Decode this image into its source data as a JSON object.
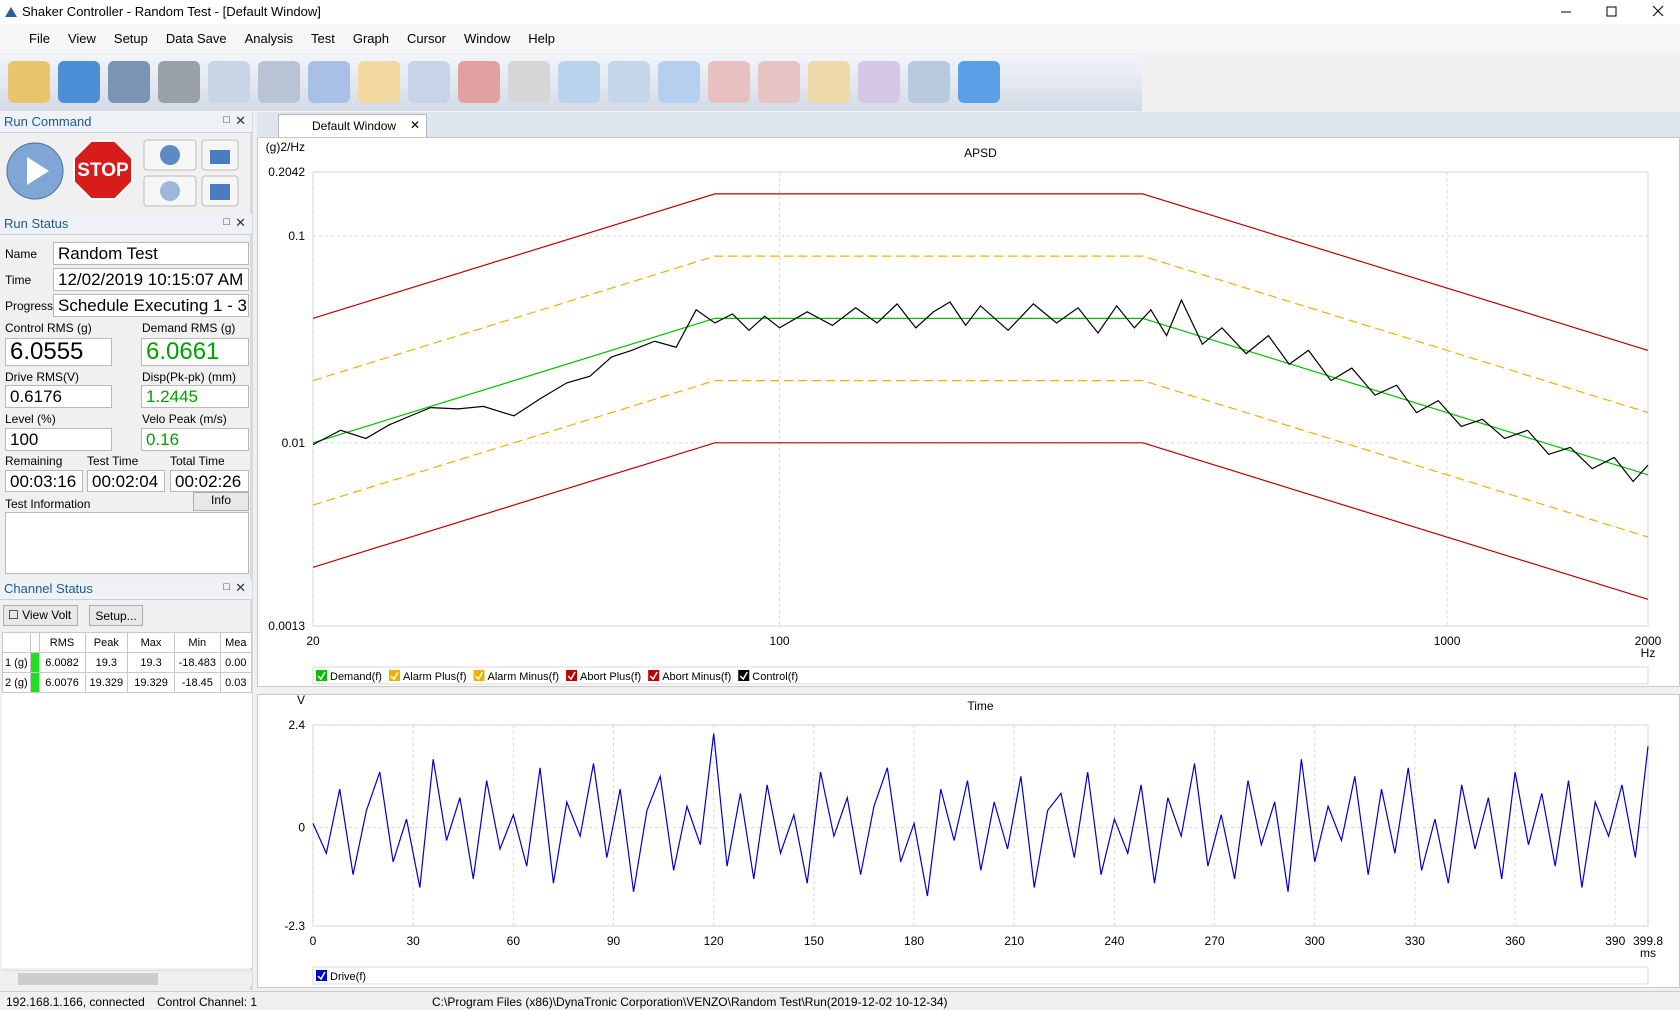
{
  "window": {
    "title": "Shaker Controller - Random Test - [Default Window]"
  },
  "menu": [
    "File",
    "View",
    "Setup",
    "Data Save",
    "Analysis",
    "Test",
    "Graph",
    "Cursor",
    "Window",
    "Help"
  ],
  "run_command": {
    "title": "Run Command",
    "stop": "STOP"
  },
  "run_status": {
    "title": "Run Status",
    "name_label": "Name",
    "name": "Random Test",
    "time_label": "Time",
    "time": "12/02/2019 10:15:07 AM",
    "progress_label": "Progress",
    "progress": "Schedule Executing 1 - 3",
    "metrics": [
      {
        "label": "Control RMS (g)",
        "value": "6.0555"
      },
      {
        "label": "Demand RMS (g)",
        "value": "6.0661"
      },
      {
        "label": "Drive RMS(V)",
        "value": "0.6176"
      },
      {
        "label": "Disp(Pk-pk) (mm)",
        "value": "1.2445"
      },
      {
        "label": "Level (%)",
        "value": "100"
      },
      {
        "label": "Velo Peak (m/s)",
        "value": "0.16"
      }
    ],
    "timers": [
      {
        "label": "Remaining",
        "value": "00:03:16"
      },
      {
        "label": "Test Time",
        "value": "00:02:04"
      },
      {
        "label": "Total Time",
        "value": "00:02:26"
      }
    ],
    "info_label": "Test Information",
    "info_button": "Info"
  },
  "channel_status": {
    "title": "Channel Status",
    "view_volt": "View Volt",
    "setup": "Setup...",
    "table": {
      "header": [
        "RMS",
        "Peak",
        "Max",
        "Min",
        "Mea"
      ],
      "rows": [
        [
          "1 (g)",
          "6.0082",
          "19.3",
          "19.3",
          "-18.483",
          "0.00"
        ],
        [
          "2 (g)",
          "6.0076",
          "19.329",
          "19.329",
          "-18.45",
          "0.03"
        ]
      ]
    }
  },
  "tab": "Default Window",
  "chart_data": [
    {
      "type": "line",
      "title": "APSD",
      "y_label": "(g)2/Hz",
      "x_unit": "Hz",
      "xlog": true,
      "ylog": true,
      "xlim": [
        20,
        2000
      ],
      "ylim": [
        0.0013,
        0.2042
      ],
      "xticks": [
        20,
        100,
        1000,
        2000
      ],
      "yticks": [
        0.0013,
        0.01,
        0.1,
        0.2042
      ],
      "grid": true,
      "series": [
        {
          "name": "Demand(f)",
          "color": "#00c000",
          "style": "solid",
          "x": [
            20,
            80,
            350,
            2000
          ],
          "values": [
            0.01,
            0.04,
            0.04,
            0.007
          ]
        },
        {
          "name": "Alarm Plus(f)",
          "color": "#f0b000",
          "style": "dashed",
          "x": [
            20,
            80,
            350,
            2000
          ],
          "values": [
            0.02,
            0.08,
            0.08,
            0.014
          ]
        },
        {
          "name": "Alarm Minus(f)",
          "color": "#f0b000",
          "style": "dashed",
          "x": [
            20,
            80,
            350,
            2000
          ],
          "values": [
            0.005,
            0.02,
            0.02,
            0.0035
          ]
        },
        {
          "name": "Abort Plus(f)",
          "color": "#c00000",
          "style": "solid",
          "x": [
            20,
            80,
            350,
            2000
          ],
          "values": [
            0.04,
            0.16,
            0.16,
            0.028
          ]
        },
        {
          "name": "Abort Minus(f)",
          "color": "#c00000",
          "style": "solid",
          "x": [
            20,
            80,
            350,
            2000
          ],
          "values": [
            0.0025,
            0.01,
            0.01,
            0.00175
          ]
        },
        {
          "name": "Control(f)",
          "color": "#000000",
          "style": "solid",
          "x": [
            20,
            22,
            24,
            26,
            28,
            30,
            33,
            36,
            40,
            44,
            48,
            52,
            56,
            60,
            65,
            70,
            75,
            80,
            85,
            90,
            95,
            100,
            110,
            120,
            130,
            140,
            150,
            160,
            170,
            180,
            190,
            200,
            220,
            240,
            260,
            280,
            300,
            320,
            340,
            360,
            380,
            400,
            430,
            460,
            500,
            540,
            580,
            620,
            670,
            720,
            780,
            840,
            900,
            970,
            1050,
            1130,
            1220,
            1320,
            1420,
            1530,
            1650,
            1780,
            1900,
            2000
          ],
          "values": [
            0.0098,
            0.0115,
            0.0105,
            0.0122,
            0.0135,
            0.0148,
            0.0146,
            0.015,
            0.0135,
            0.0165,
            0.0195,
            0.021,
            0.026,
            0.028,
            0.031,
            0.029,
            0.044,
            0.038,
            0.042,
            0.035,
            0.041,
            0.036,
            0.043,
            0.037,
            0.045,
            0.038,
            0.047,
            0.036,
            0.043,
            0.048,
            0.037,
            0.046,
            0.035,
            0.047,
            0.038,
            0.045,
            0.034,
            0.046,
            0.036,
            0.044,
            0.033,
            0.049,
            0.03,
            0.036,
            0.027,
            0.033,
            0.024,
            0.028,
            0.02,
            0.023,
            0.017,
            0.019,
            0.014,
            0.016,
            0.012,
            0.013,
            0.0105,
            0.0115,
            0.0088,
            0.0095,
            0.0075,
            0.0085,
            0.0065,
            0.0078
          ]
        }
      ]
    },
    {
      "type": "line",
      "title": "Time",
      "y_label": "V",
      "x_unit": "ms",
      "xlog": false,
      "ylog": false,
      "xlim": [
        0,
        399.8
      ],
      "ylim": [
        -2.3,
        2.4
      ],
      "xticks": [
        0,
        30,
        60,
        90,
        120,
        150,
        180,
        210,
        240,
        270,
        300,
        330,
        360,
        390,
        399.8
      ],
      "yticks": [
        -2.3,
        0,
        2.4
      ],
      "grid": true,
      "series": [
        {
          "name": "Drive(f)",
          "color": "#0000cc",
          "style": "solid",
          "x": [
            0,
            4,
            8,
            12,
            16,
            20,
            24,
            28,
            32,
            36,
            40,
            44,
            48,
            52,
            56,
            60,
            64,
            68,
            72,
            76,
            80,
            84,
            88,
            92,
            96,
            100,
            104,
            108,
            112,
            116,
            120,
            124,
            128,
            132,
            136,
            140,
            144,
            148,
            152,
            156,
            160,
            164,
            168,
            172,
            176,
            180,
            184,
            188,
            192,
            196,
            200,
            204,
            208,
            212,
            216,
            220,
            224,
            228,
            232,
            236,
            240,
            244,
            248,
            252,
            256,
            260,
            264,
            268,
            272,
            276,
            280,
            284,
            288,
            292,
            296,
            300,
            304,
            308,
            312,
            316,
            320,
            324,
            328,
            332,
            336,
            340,
            344,
            348,
            352,
            356,
            360,
            364,
            368,
            372,
            376,
            380,
            384,
            388,
            392,
            396,
            399.8
          ],
          "values": [
            0.1,
            -0.6,
            0.9,
            -1.1,
            0.4,
            1.3,
            -0.8,
            0.2,
            -1.4,
            1.6,
            -0.3,
            0.7,
            -1.2,
            1.1,
            -0.5,
            0.3,
            -0.9,
            1.4,
            -1.3,
            0.6,
            -0.2,
            1.5,
            -0.7,
            0.9,
            -1.5,
            0.4,
            1.2,
            -1.0,
            0.5,
            -0.4,
            2.2,
            -0.9,
            0.8,
            -1.2,
            1.0,
            -0.6,
            0.3,
            -1.3,
            1.3,
            -0.2,
            0.7,
            -1.1,
            0.5,
            1.4,
            -0.8,
            0.1,
            -1.6,
            0.9,
            -0.3,
            1.1,
            -1.0,
            0.6,
            -0.5,
            1.2,
            -1.4,
            0.4,
            0.8,
            -0.7,
            1.3,
            -1.1,
            0.2,
            -0.6,
            1.0,
            -1.3,
            0.7,
            -0.2,
            1.5,
            -0.9,
            0.3,
            -1.2,
            1.1,
            -0.4,
            0.6,
            -1.5,
            1.6,
            -0.8,
            0.5,
            -0.3,
            1.2,
            -1.1,
            0.9,
            -0.6,
            1.4,
            -1.0,
            0.2,
            -1.3,
            1.0,
            -0.5,
            0.7,
            -1.2,
            1.3,
            -0.4,
            0.8,
            -0.9,
            1.1,
            -1.4,
            0.6,
            -0.2,
            1.0,
            -0.7,
            1.9
          ]
        }
      ]
    }
  ],
  "status_bar": [
    "192.168.1.166, connected",
    "Control Channel: 1",
    "C:\\Program Files (x86)\\DynaTronic Corporation\\VENZO\\Random Test\\Run(2019-12-02 10-12-34)"
  ]
}
